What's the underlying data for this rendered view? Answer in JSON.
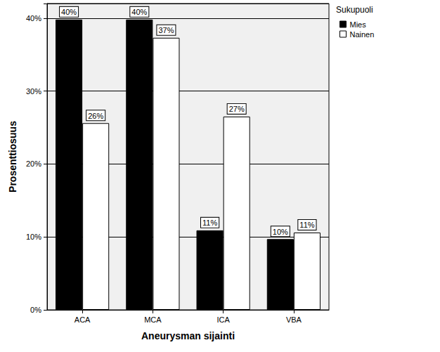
{
  "chart_data": {
    "type": "bar",
    "x_label": "Aneurysman sijainti",
    "y_label": "Prosenttiosuus",
    "legend_title": "Sukupuoli",
    "categories": [
      "ACA",
      "MCA",
      "ICA",
      "VBA"
    ],
    "series": [
      {
        "name": "Mies",
        "color": "#000000",
        "values": [
          39.8,
          39.8,
          10.9,
          9.7
        ],
        "value_labels": [
          "40%",
          "40%",
          "11%",
          "10%"
        ]
      },
      {
        "name": "Nainen",
        "color": "#ffffff",
        "values": [
          25.6,
          37.3,
          26.5,
          10.6
        ],
        "value_labels": [
          "26%",
          "37%",
          "27%",
          "11%"
        ]
      }
    ],
    "ylim": [
      0,
      42
    ],
    "yticks": [
      {
        "value": 0,
        "label": "0%"
      },
      {
        "value": 10,
        "label": "10%"
      },
      {
        "value": 20,
        "label": "20%"
      },
      {
        "value": 30,
        "label": "30%"
      },
      {
        "value": 40,
        "label": "40%"
      }
    ],
    "grid": true,
    "legend": "upper right",
    "data_labels": true
  }
}
